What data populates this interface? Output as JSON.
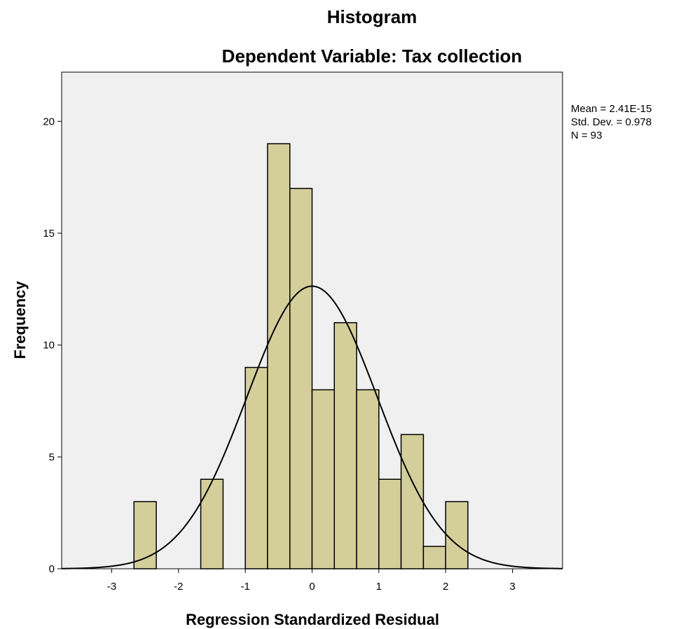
{
  "chart_data": {
    "type": "histogram",
    "title": "Histogram",
    "subtitle": "Dependent Variable: Tax collection",
    "xlabel": "Regression Standardized Residual",
    "ylabel": "Frequency",
    "xlim": [
      -3.75,
      3.75
    ],
    "ylim": [
      0,
      22.2
    ],
    "x_ticks": [
      -3,
      -2,
      -1,
      0,
      1,
      2,
      3
    ],
    "x_tick_labels": [
      "-3",
      "-2",
      "-1",
      "0",
      "1",
      "2",
      "3"
    ],
    "y_ticks": [
      0,
      5,
      10,
      15,
      20
    ],
    "y_tick_labels": [
      "0",
      "5",
      "10",
      "15",
      "20"
    ],
    "bin_width": 0.333,
    "bins": [
      {
        "start": -2.667,
        "end": -2.333,
        "count": 3
      },
      {
        "start": -1.667,
        "end": -1.333,
        "count": 4
      },
      {
        "start": -1.0,
        "end": -0.667,
        "count": 9
      },
      {
        "start": -0.667,
        "end": -0.333,
        "count": 19
      },
      {
        "start": -0.333,
        "end": 0.0,
        "count": 17
      },
      {
        "start": 0.0,
        "end": 0.333,
        "count": 8
      },
      {
        "start": 0.333,
        "end": 0.667,
        "count": 11
      },
      {
        "start": 0.667,
        "end": 1.0,
        "count": 8
      },
      {
        "start": 1.0,
        "end": 1.333,
        "count": 4
      },
      {
        "start": 1.333,
        "end": 1.667,
        "count": 6
      },
      {
        "start": 1.667,
        "end": 2.0,
        "count": 1
      },
      {
        "start": 2.0,
        "end": 2.333,
        "count": 3
      }
    ],
    "normal_curve": {
      "mean": 0.0,
      "sd": 0.978,
      "n": 93
    },
    "stats": [
      "Mean = 2.41E-15",
      "Std. Dev. = 0.978",
      "N = 93"
    ],
    "colors": {
      "plot_background": "#f0f0f0",
      "bar_fill": "#d4cf9a",
      "bar_stroke": "#000000",
      "curve": "#000000"
    }
  }
}
